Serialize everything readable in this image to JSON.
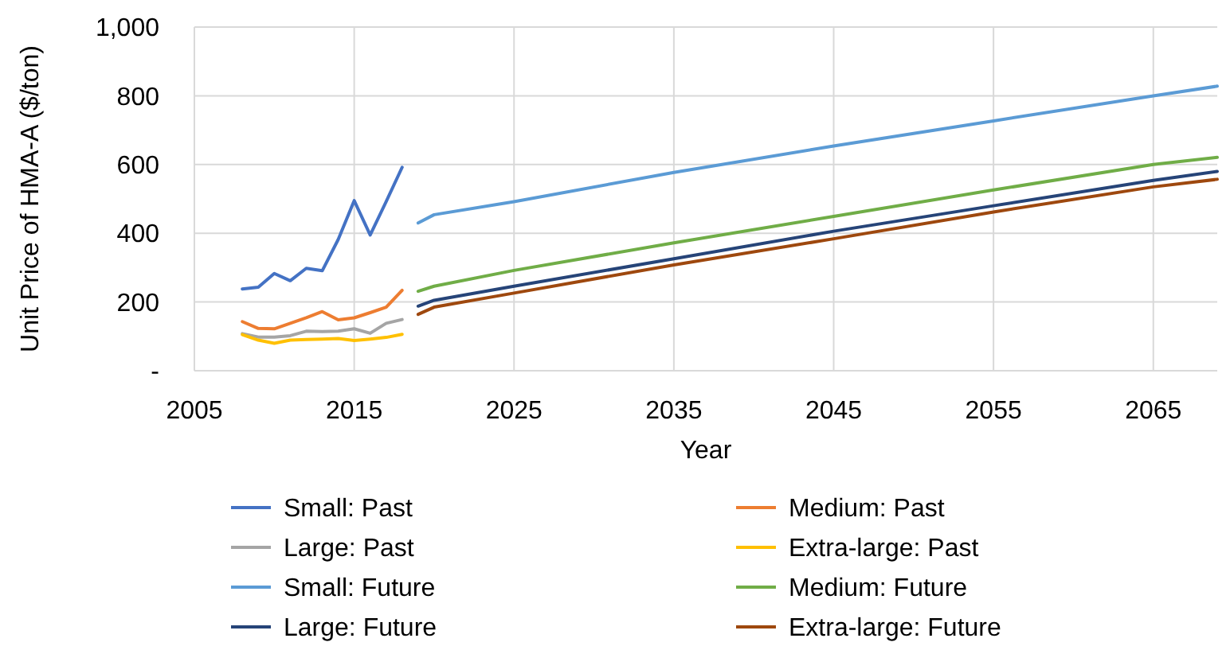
{
  "chart_data": {
    "type": "line",
    "xlabel": "Year",
    "ylabel": "Unit Price of HMA-A ($/ton)",
    "xlim": [
      2005,
      2069
    ],
    "xticks": [
      2005,
      2015,
      2025,
      2035,
      2045,
      2055,
      2065
    ],
    "ylim": [
      0,
      1000
    ],
    "yticks": [
      {
        "value": 0,
        "label": "-"
      },
      200,
      400,
      600,
      800,
      {
        "value": 1000,
        "label": "1,000"
      }
    ],
    "grid": true,
    "legend": "bottom",
    "marker": "none",
    "line_style": "solid",
    "series": [
      {
        "name": "Small: Past",
        "color": "#4472c4",
        "x": [
          2008,
          2009,
          2010,
          2011,
          2012,
          2013,
          2014,
          2015,
          2016,
          2017,
          2018
        ],
        "values": [
          238,
          243,
          283,
          262,
          298,
          291,
          382,
          495,
          395,
          492,
          592
        ]
      },
      {
        "name": "Medium: Past",
        "color": "#ed7d31",
        "x": [
          2008,
          2009,
          2010,
          2011,
          2012,
          2013,
          2014,
          2015,
          2016,
          2017,
          2018
        ],
        "values": [
          143,
          123,
          122,
          138,
          154,
          172,
          148,
          154,
          169,
          185,
          234
        ]
      },
      {
        "name": "Large: Past",
        "color": "#a5a5a5",
        "x": [
          2008,
          2009,
          2010,
          2011,
          2012,
          2013,
          2014,
          2015,
          2016,
          2017,
          2018
        ],
        "values": [
          108,
          98,
          98,
          102,
          115,
          114,
          115,
          122,
          109,
          138,
          149
        ]
      },
      {
        "name": "Extra-large: Past",
        "color": "#ffc000",
        "x": [
          2008,
          2009,
          2010,
          2011,
          2012,
          2013,
          2014,
          2015,
          2016,
          2017,
          2018
        ],
        "values": [
          105,
          89,
          80,
          89,
          91,
          92,
          94,
          88,
          92,
          97,
          106
        ]
      },
      {
        "name": "Small: Future",
        "color": "#5b9bd5",
        "x": [
          2019,
          2020,
          2025,
          2035,
          2045,
          2055,
          2065,
          2069
        ],
        "values": [
          430,
          454,
          492,
          577,
          654,
          727,
          800,
          828
        ]
      },
      {
        "name": "Medium: Future",
        "color": "#70ad47",
        "x": [
          2019,
          2020,
          2025,
          2035,
          2045,
          2055,
          2065,
          2069
        ],
        "values": [
          231,
          246,
          292,
          372,
          449,
          526,
          600,
          621
        ]
      },
      {
        "name": "Large: Future",
        "color": "#264478",
        "x": [
          2019,
          2020,
          2025,
          2035,
          2045,
          2055,
          2065,
          2069
        ],
        "values": [
          188,
          205,
          246,
          326,
          406,
          480,
          554,
          580
        ]
      },
      {
        "name": "Extra-large: Future",
        "color": "#9e480e",
        "x": [
          2019,
          2020,
          2025,
          2035,
          2045,
          2055,
          2065,
          2069
        ],
        "values": [
          164,
          185,
          226,
          308,
          384,
          462,
          535,
          557
        ]
      }
    ]
  }
}
